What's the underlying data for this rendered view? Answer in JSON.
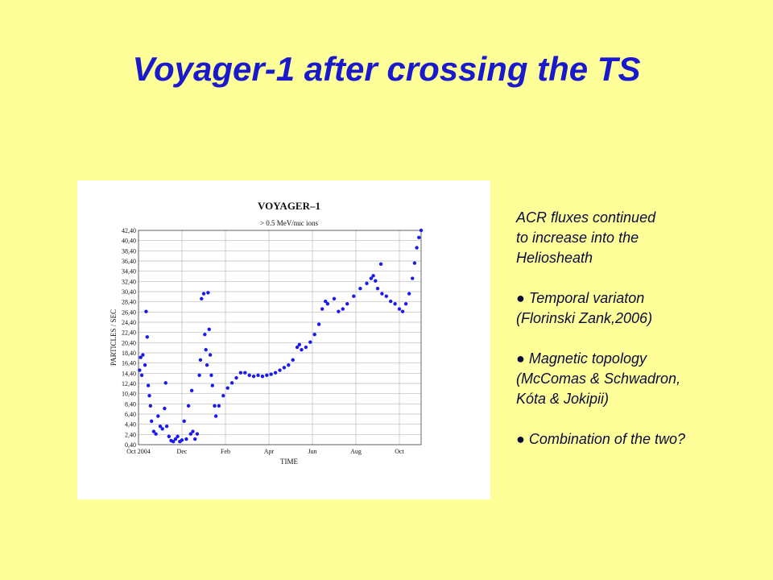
{
  "slide": {
    "title": "Voyager-1 after crossing the TS",
    "paragraphs": [
      [
        "ACR fluxes continued",
        "to increase into the",
        "Heliosheath"
      ],
      [
        "● Temporal variaton",
        "(Florinski Zank,2006)"
      ],
      [
        "● Magnetic topology",
        "(McComas & Schwadron,",
        "Kóta & Jokipii)"
      ],
      [
        "● Combination of the two?"
      ]
    ]
  },
  "chart_data": {
    "type": "scatter",
    "title": "VOYAGER–1",
    "subtitle": "> 0.5 MeV/nuc ions",
    "x_label": "TIME",
    "y_label": "PARTICLES / SEC",
    "color": "#1a1aee",
    "grid": true,
    "xlim": [
      0,
      13
    ],
    "ylim": [
      0.4,
      42.4
    ],
    "xticks": [
      {
        "value": 0,
        "label": "Oct 2004"
      },
      {
        "value": 2,
        "label": "Dec"
      },
      {
        "value": 4,
        "label": "Feb"
      },
      {
        "value": 6,
        "label": "Apr"
      },
      {
        "value": 8,
        "label": "Jun"
      },
      {
        "value": 10,
        "label": "Aug"
      },
      {
        "value": 12,
        "label": "Oct"
      }
    ],
    "yticks": [
      {
        "value": 0.4,
        "label": "0,40"
      },
      {
        "value": 2.4,
        "label": "2,40"
      },
      {
        "value": 4.4,
        "label": "4,40"
      },
      {
        "value": 6.4,
        "label": "6,40"
      },
      {
        "value": 8.4,
        "label": "8,40"
      },
      {
        "value": 10.4,
        "label": "10,40"
      },
      {
        "value": 12.4,
        "label": "12,40"
      },
      {
        "value": 14.4,
        "label": "14,40"
      },
      {
        "value": 16.4,
        "label": "16,40"
      },
      {
        "value": 18.4,
        "label": "18,40"
      },
      {
        "value": 20.4,
        "label": "20,40"
      },
      {
        "value": 22.4,
        "label": "22,40"
      },
      {
        "value": 24.4,
        "label": "24,40"
      },
      {
        "value": 26.4,
        "label": "26,40"
      },
      {
        "value": 28.4,
        "label": "28,40"
      },
      {
        "value": 30.4,
        "label": "30,40"
      },
      {
        "value": 32.4,
        "label": "32,40"
      },
      {
        "value": 34.4,
        "label": "34,40"
      },
      {
        "value": 36.4,
        "label": "36,40"
      },
      {
        "value": 38.4,
        "label": "38,40"
      },
      {
        "value": 40.4,
        "label": "40,40"
      },
      {
        "value": 42.4,
        "label": "42,40"
      }
    ],
    "x": [
      0.05,
      0.1,
      0.15,
      0.2,
      0.3,
      0.35,
      0.4,
      0.45,
      0.5,
      0.55,
      0.6,
      0.7,
      0.8,
      0.9,
      1.0,
      1.1,
      1.2,
      1.25,
      1.3,
      1.4,
      1.5,
      1.6,
      1.7,
      1.8,
      1.9,
      2.0,
      2.1,
      2.2,
      2.3,
      2.4,
      2.45,
      2.5,
      2.6,
      2.7,
      2.8,
      2.85,
      2.9,
      3.0,
      3.05,
      3.1,
      3.15,
      3.2,
      3.25,
      3.3,
      3.35,
      3.4,
      3.5,
      3.56,
      3.7,
      3.9,
      4.1,
      4.3,
      4.5,
      4.7,
      4.9,
      5.1,
      5.3,
      5.5,
      5.7,
      5.9,
      6.1,
      6.3,
      6.5,
      6.7,
      6.9,
      7.1,
      7.3,
      7.4,
      7.5,
      7.7,
      7.9,
      8.1,
      8.3,
      8.45,
      8.6,
      8.7,
      9.0,
      9.2,
      9.4,
      9.6,
      9.9,
      10.2,
      10.5,
      10.7,
      10.8,
      10.9,
      11.0,
      11.15,
      11.2,
      11.4,
      11.6,
      11.8,
      12.0,
      12.15,
      12.3,
      12.45,
      12.6,
      12.7,
      12.8,
      12.9,
      13.0
    ],
    "values": [
      15,
      17.5,
      14,
      18,
      16,
      26.5,
      21.5,
      12,
      10,
      8,
      5,
      3,
      2.5,
      6,
      4,
      3.5,
      7.5,
      12.5,
      4,
      2,
      1.2,
      1,
      1.5,
      2,
      1,
      1.3,
      5,
      1.5,
      8,
      2.5,
      11,
      3,
      1.5,
      2.5,
      14,
      17,
      29,
      30,
      22,
      19,
      16,
      30.2,
      23,
      18,
      14,
      12,
      8,
      6,
      8,
      10,
      11.5,
      12.5,
      13.5,
      14.5,
      14.5,
      14,
      13.8,
      14,
      13.8,
      14,
      14.2,
      14.5,
      15,
      15.5,
      16,
      17,
      19.5,
      20,
      19,
      19.5,
      20.5,
      22,
      24,
      27,
      28.5,
      28,
      29,
      26.5,
      27,
      28,
      29.5,
      31,
      32,
      33,
      33.5,
      32.5,
      31,
      35.8,
      30,
      29.5,
      28.5,
      28,
      27,
      26.5,
      28,
      30,
      33,
      36,
      39,
      41,
      42.4
    ]
  }
}
